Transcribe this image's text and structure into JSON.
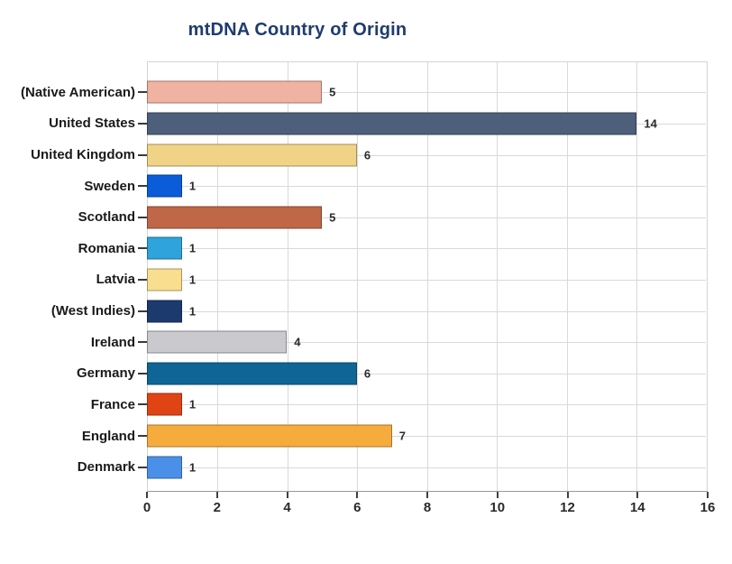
{
  "title": "mtDNA Country of Origin",
  "colors": {
    "title": "#1F3C6E",
    "gridline": "#d9d9d9",
    "axis_line": "#9a9a9a",
    "tick_mark": "#3f3f3f",
    "category_label": "#1a1a1a",
    "value_label": "#2b2b2b"
  },
  "chart_data": {
    "type": "bar",
    "orientation": "horizontal",
    "title": "mtDNA Country of Origin",
    "categories": [
      "(Native American)",
      "United States",
      "United Kingdom",
      "Sweden",
      "Scotland",
      "Romania",
      "Latvia",
      "(West Indies)",
      "Ireland",
      "Germany",
      "France",
      "England",
      "Denmark"
    ],
    "values": [
      5,
      14,
      6,
      1,
      5,
      1,
      1,
      1,
      4,
      6,
      1,
      7,
      1
    ],
    "bar_colors": [
      "#F0B2A1",
      "#4D5F7A",
      "#F0D387",
      "#0B5CD8",
      "#BF6747",
      "#2EA3DC",
      "#F8DE8E",
      "#1D3A6E",
      "#C9C9CE",
      "#0F6696",
      "#E04415",
      "#F6AC3D",
      "#4A90E8"
    ],
    "value_labels": [
      "5",
      "14",
      "6",
      "1",
      "5",
      "1",
      "1",
      "1",
      "4",
      "6",
      "1",
      "7",
      "1"
    ],
    "xlabel": "",
    "ylabel": "",
    "xlim": [
      0,
      16
    ],
    "x_ticks": [
      0,
      2,
      4,
      6,
      8,
      10,
      12,
      14,
      16
    ],
    "grid": true,
    "legend": false,
    "value_labels_shown": true
  }
}
